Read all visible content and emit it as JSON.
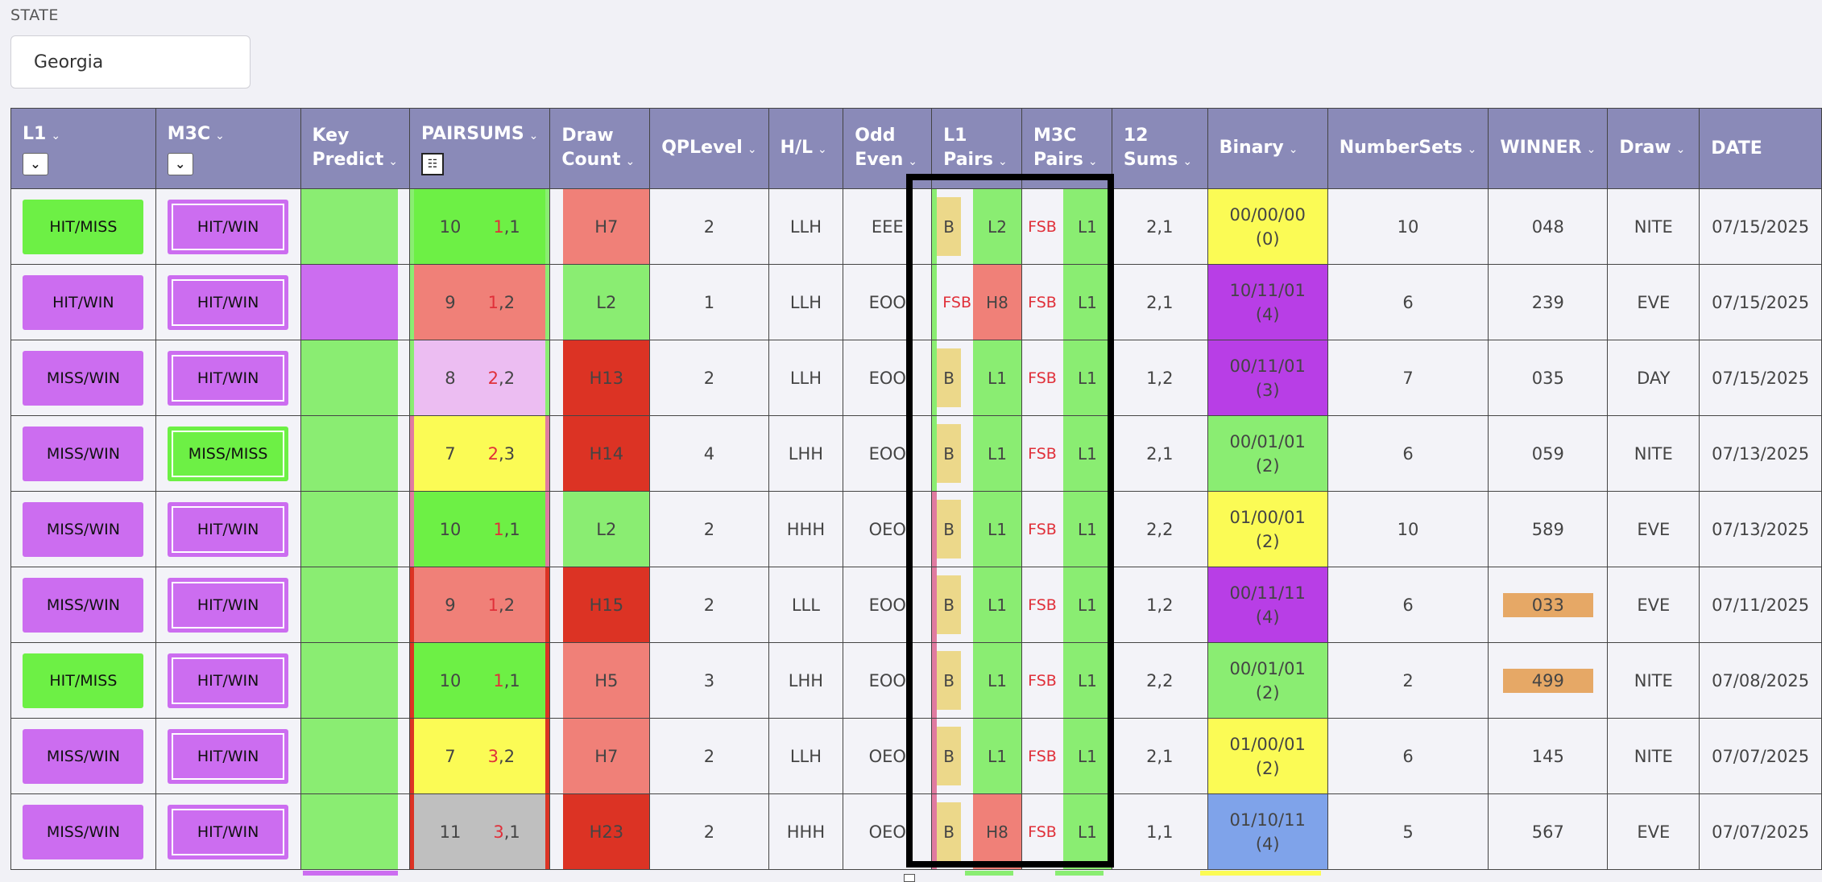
{
  "state": {
    "label": "STATE",
    "value": "Georgia"
  },
  "headers": {
    "l1": "L1",
    "m3c": "M3C",
    "key_predict": "Key Predict",
    "pairsums": "PAIRSUMS",
    "draw_count": "Draw Count",
    "qplevel": "QPLevel",
    "hl": "H/L",
    "odd_even": "Odd Even",
    "l1_pairs": "L1 Pairs",
    "m3c_pairs": "M3C Pairs",
    "sums12": "12 Sums",
    "binary": "Binary",
    "numbersets": "NumberSets",
    "winner": "WINNER",
    "draw": "Draw",
    "date": "DATE"
  },
  "colors": {
    "green": "#6df045",
    "purple": "#cc6df0",
    "light_green": "#8aed72",
    "salmon": "#f08078",
    "red": "#dc3324",
    "yellow": "#fbfb55",
    "pink_light": "#ecbdf2",
    "gray": "#bfbfbf",
    "violet": "#b83ee6",
    "blue": "#7fa3ea",
    "tan": "#ecd88a",
    "orange": "#e6a866",
    "header": "#8a8ab8"
  },
  "rows": [
    {
      "l1": "HIT/MISS",
      "l1c": "green",
      "m3c": "HIT/WIN",
      "m3cc": "purple",
      "kp": "light_green",
      "kps": "pale",
      "ps_a": "10",
      "ps_r": "1",
      "ps_b": ",1",
      "psc": "green",
      "psl": "light_green",
      "psr": "light_green",
      "dc": "H7",
      "dcc": "salmon",
      "qp": "2",
      "hl": "LLH",
      "oe": "EEE",
      "lps": "light_green",
      "lpt": "B",
      "lpv": "L2",
      "lpvc": "light_green",
      "mpt": "FSB",
      "mpv": "L1",
      "s12": "2,1",
      "bin1": "00/00/00",
      "bin2": "(0)",
      "binc": "yellow",
      "ns": "10",
      "win": "048",
      "wintag": false,
      "draw": "NITE",
      "date": "07/15/2025"
    },
    {
      "l1": "HIT/WIN",
      "l1c": "purple",
      "m3c": "HIT/WIN",
      "m3cc": "purple",
      "kp": "purple",
      "kps": "pale",
      "ps_a": "9",
      "ps_r": "1",
      "ps_b": ",2",
      "psc": "salmon",
      "psl": "light_green",
      "psr": "light_green",
      "dc": "L2",
      "dcc": "light_green",
      "qp": "1",
      "hl": "LLH",
      "oe": "EOO",
      "lps": "light_green",
      "lpt": "FSB",
      "lpv": "H8",
      "lpvc": "salmon",
      "mpt": "FSB",
      "mpv": "L1",
      "s12": "2,1",
      "bin1": "10/11/01 (4)",
      "bin2": "",
      "binc": "violet",
      "ns": "6",
      "win": "239",
      "wintag": false,
      "draw": "EVE",
      "date": "07/15/2025"
    },
    {
      "l1": "MISS/WIN",
      "l1c": "purple",
      "m3c": "HIT/WIN",
      "m3cc": "purple",
      "kp": "light_green",
      "kps": "pale",
      "ps_a": "8",
      "ps_r": "2",
      "ps_b": ",2",
      "psc": "pink_light",
      "psl": "light_green",
      "psr": "light_green",
      "dc": "H13",
      "dcc": "red",
      "qp": "2",
      "hl": "LLH",
      "oe": "EOO",
      "lps": "light_green",
      "lpt": "B",
      "lpv": "L1",
      "lpvc": "light_green",
      "mpt": "FSB",
      "mpv": "L1",
      "s12": "1,2",
      "bin1": "00/11/01 (3)",
      "bin2": "",
      "binc": "violet",
      "ns": "7",
      "win": "035",
      "wintag": false,
      "draw": "DAY",
      "date": "07/15/2025"
    },
    {
      "l1": "MISS/WIN",
      "l1c": "purple",
      "m3c": "MISS/MISS",
      "m3cc": "green",
      "kp": "light_green",
      "kps": "pale",
      "ps_a": "7",
      "ps_r": "2",
      "ps_b": ",3",
      "psc": "yellow",
      "psl": "pink",
      "psr": "pink",
      "dc": "H14",
      "dcc": "red",
      "qp": "4",
      "hl": "LHH",
      "oe": "EOO",
      "lps": "light_green",
      "lpt": "B",
      "lpv": "L1",
      "lpvc": "light_green",
      "mpt": "FSB",
      "mpv": "L1",
      "s12": "2,1",
      "bin1": "00/01/01",
      "bin2": "(2)",
      "binc": "light_green",
      "ns": "6",
      "win": "059",
      "wintag": false,
      "draw": "NITE",
      "date": "07/13/2025"
    },
    {
      "l1": "MISS/WIN",
      "l1c": "purple",
      "m3c": "HIT/WIN",
      "m3cc": "purple",
      "kp": "light_green",
      "kps": "pale",
      "ps_a": "10",
      "ps_r": "1",
      "ps_b": ",1",
      "psc": "green",
      "psl": "pink",
      "psr": "pink",
      "dc": "L2",
      "dcc": "light_green",
      "qp": "2",
      "hl": "HHH",
      "oe": "OEO",
      "lps": "pink",
      "lpt": "B",
      "lpv": "L1",
      "lpvc": "light_green",
      "mpt": "FSB",
      "mpv": "L1",
      "s12": "2,2",
      "bin1": "01/00/01",
      "bin2": "(2)",
      "binc": "yellow",
      "ns": "10",
      "win": "589",
      "wintag": false,
      "draw": "EVE",
      "date": "07/13/2025"
    },
    {
      "l1": "MISS/WIN",
      "l1c": "purple",
      "m3c": "HIT/WIN",
      "m3cc": "purple",
      "kp": "light_green",
      "kps": "pale",
      "ps_a": "9",
      "ps_r": "1",
      "ps_b": ",2",
      "psc": "salmon",
      "psl": "red",
      "psr": "red",
      "dc": "H15",
      "dcc": "red",
      "qp": "2",
      "hl": "LLL",
      "oe": "EOO",
      "lps": "pink",
      "lpt": "B",
      "lpv": "L1",
      "lpvc": "light_green",
      "mpt": "FSB",
      "mpv": "L1",
      "s12": "1,2",
      "bin1": "00/11/11 (4)",
      "bin2": "",
      "binc": "violet",
      "ns": "6",
      "win": "033",
      "wintag": true,
      "draw": "EVE",
      "date": "07/11/2025"
    },
    {
      "l1": "HIT/MISS",
      "l1c": "green",
      "m3c": "HIT/WIN",
      "m3cc": "purple",
      "kp": "light_green",
      "kps": "pale",
      "ps_a": "10",
      "ps_r": "1",
      "ps_b": ",1",
      "psc": "green",
      "psl": "red",
      "psr": "red",
      "dc": "H5",
      "dcc": "salmon",
      "qp": "3",
      "hl": "LHH",
      "oe": "EOO",
      "lps": "pink",
      "lpt": "B",
      "lpv": "L1",
      "lpvc": "light_green",
      "mpt": "FSB",
      "mpv": "L1",
      "s12": "2,2",
      "bin1": "00/01/01",
      "bin2": "(2)",
      "binc": "light_green",
      "ns": "2",
      "win": "499",
      "wintag": true,
      "draw": "NITE",
      "date": "07/08/2025"
    },
    {
      "l1": "MISS/WIN",
      "l1c": "purple",
      "m3c": "HIT/WIN",
      "m3cc": "purple",
      "kp": "light_green",
      "kps": "pale",
      "ps_a": "7",
      "ps_r": "3",
      "ps_b": ",2",
      "psc": "yellow",
      "psl": "red",
      "psr": "red",
      "dc": "H7",
      "dcc": "salmon",
      "qp": "2",
      "hl": "LLH",
      "oe": "OEO",
      "lps": "pink",
      "lpt": "B",
      "lpv": "L1",
      "lpvc": "light_green",
      "mpt": "FSB",
      "mpv": "L1",
      "s12": "2,1",
      "bin1": "01/00/01",
      "bin2": "(2)",
      "binc": "yellow",
      "ns": "6",
      "win": "145",
      "wintag": false,
      "draw": "NITE",
      "date": "07/07/2025"
    },
    {
      "l1": "MISS/WIN",
      "l1c": "purple",
      "m3c": "HIT/WIN",
      "m3cc": "purple",
      "kp": "light_green",
      "kps": "pale",
      "ps_a": "11",
      "ps_r": "3",
      "ps_b": ",1",
      "psc": "gray",
      "psl": "red",
      "psr": "red",
      "dc": "H23",
      "dcc": "red",
      "qp": "2",
      "hl": "HHH",
      "oe": "OEO",
      "lps": "pink",
      "lpt": "B",
      "lpv": "H8",
      "lpvc": "salmon",
      "mpt": "FSB",
      "mpv": "L1",
      "s12": "1,1",
      "bin1": "01/10/11 (4)",
      "bin2": "",
      "binc": "blue",
      "ns": "5",
      "win": "567",
      "wintag": false,
      "draw": "EVE",
      "date": "07/07/2025"
    }
  ]
}
